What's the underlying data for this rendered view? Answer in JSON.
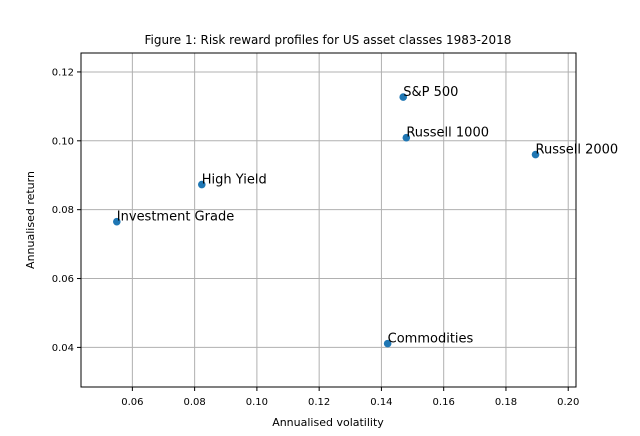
{
  "chart_data": {
    "type": "scatter",
    "title": "Figure 1: Risk reward profiles for US asset classes 1983-2018",
    "xlabel": "Annualised volatility",
    "ylabel": "Annualised return",
    "xlim": [
      0.0435,
      0.2025
    ],
    "ylim": [
      0.0285,
      0.1255
    ],
    "xticks": [
      0.06,
      0.08,
      0.1,
      0.12,
      0.14,
      0.16,
      0.18,
      0.2
    ],
    "xtick_labels": [
      "0.06",
      "0.08",
      "0.10",
      "0.12",
      "0.14",
      "0.16",
      "0.18",
      "0.20"
    ],
    "yticks": [
      0.04,
      0.06,
      0.08,
      0.1,
      0.12
    ],
    "ytick_labels": [
      "0.04",
      "0.06",
      "0.08",
      "0.10",
      "0.12"
    ],
    "grid": true,
    "marker_color": "#1f77b4",
    "points": [
      {
        "label": "S&P 500",
        "x": 0.147,
        "y": 0.1127
      },
      {
        "label": "Russell 1000",
        "x": 0.148,
        "y": 0.1009
      },
      {
        "label": "Russell 2000",
        "x": 0.1895,
        "y": 0.096
      },
      {
        "label": "High Yield",
        "x": 0.0823,
        "y": 0.0873
      },
      {
        "label": "Investment Grade",
        "x": 0.055,
        "y": 0.0765
      },
      {
        "label": "Commodities",
        "x": 0.142,
        "y": 0.0411
      }
    ]
  }
}
